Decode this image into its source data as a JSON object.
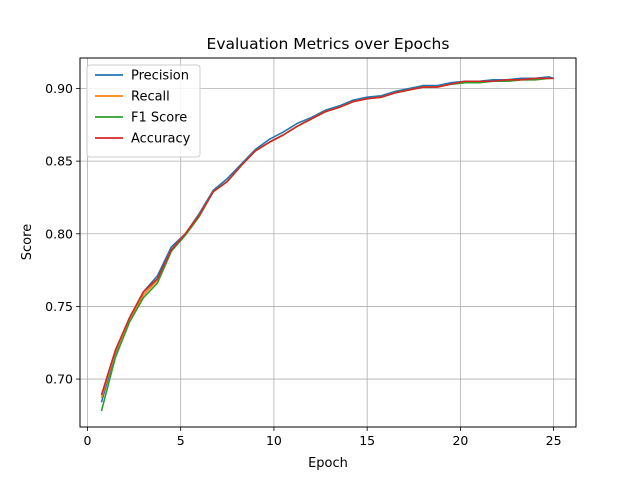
{
  "chart_data": {
    "type": "line",
    "title": "Evaluation Metrics over Epochs",
    "xlabel": "Epoch",
    "ylabel": "Score",
    "xlim": [
      -0.4,
      26.2
    ],
    "ylim": [
      0.667,
      0.921
    ],
    "xticks": [
      0,
      5,
      10,
      15,
      20,
      25
    ],
    "yticks": [
      0.7,
      0.75,
      0.8,
      0.85,
      0.9
    ],
    "xtick_labels": [
      "0",
      "5",
      "10",
      "15",
      "20",
      "25"
    ],
    "ytick_labels": [
      "0.70",
      "0.75",
      "0.80",
      "0.85",
      "0.90"
    ],
    "grid": true,
    "legend_position": "top-left",
    "x": [
      0.75,
      1.5,
      2.25,
      3,
      3.75,
      4.5,
      5.25,
      6,
      6.75,
      7.5,
      8.25,
      9,
      9.75,
      10.5,
      11.25,
      12,
      12.75,
      13.5,
      14.25,
      15,
      15.75,
      16.5,
      17.25,
      18,
      18.75,
      19.5,
      20.25,
      21,
      21.75,
      22.5,
      23.25,
      24,
      24.75,
      25.0
    ],
    "series": [
      {
        "name": "Precision",
        "color": "#1f77b4",
        "values": [
          0.684,
          0.718,
          0.742,
          0.76,
          0.771,
          0.791,
          0.8,
          0.814,
          0.83,
          0.838,
          0.848,
          0.858,
          0.865,
          0.87,
          0.876,
          0.88,
          0.885,
          0.888,
          0.892,
          0.894,
          0.895,
          0.898,
          0.9,
          0.902,
          0.902,
          0.904,
          0.905,
          0.905,
          0.906,
          0.906,
          0.907,
          0.907,
          0.908,
          0.907
        ]
      },
      {
        "name": "Recall",
        "color": "#ff7f0e",
        "values": [
          0.687,
          0.719,
          0.741,
          0.758,
          0.768,
          0.789,
          0.8,
          0.813,
          0.829,
          0.836,
          0.847,
          0.857,
          0.863,
          0.868,
          0.874,
          0.879,
          0.884,
          0.887,
          0.891,
          0.893,
          0.894,
          0.897,
          0.899,
          0.901,
          0.901,
          0.903,
          0.904,
          0.904,
          0.905,
          0.905,
          0.906,
          0.906,
          0.907,
          0.907
        ]
      },
      {
        "name": "F1 Score",
        "color": "#2ca02c",
        "values": [
          0.678,
          0.715,
          0.739,
          0.756,
          0.766,
          0.788,
          0.799,
          0.812,
          0.829,
          0.836,
          0.847,
          0.857,
          0.863,
          0.868,
          0.874,
          0.879,
          0.884,
          0.887,
          0.891,
          0.893,
          0.894,
          0.897,
          0.899,
          0.901,
          0.901,
          0.903,
          0.904,
          0.904,
          0.905,
          0.905,
          0.906,
          0.906,
          0.907,
          0.907
        ]
      },
      {
        "name": "Accuracy",
        "color": "#d62728",
        "values": [
          0.689,
          0.72,
          0.742,
          0.76,
          0.769,
          0.789,
          0.8,
          0.813,
          0.829,
          0.836,
          0.847,
          0.857,
          0.863,
          0.868,
          0.874,
          0.879,
          0.884,
          0.887,
          0.891,
          0.893,
          0.894,
          0.897,
          0.899,
          0.901,
          0.901,
          0.903,
          0.905,
          0.905,
          0.905,
          0.906,
          0.906,
          0.907,
          0.907,
          0.907
        ]
      }
    ]
  }
}
